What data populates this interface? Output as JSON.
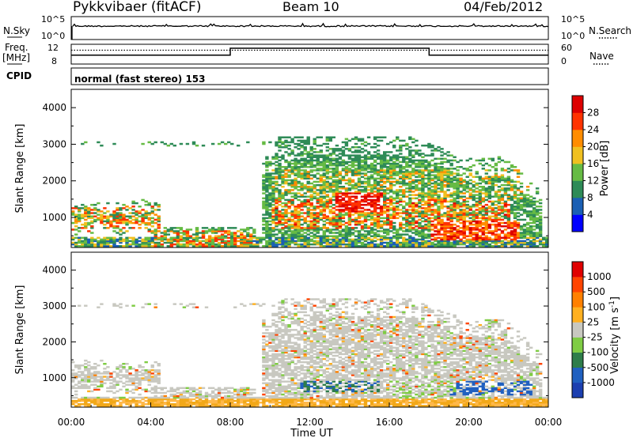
{
  "header": {
    "station": "Pykkvibaer (fitACF)",
    "beam": "Beam 10",
    "date": "04/Feb/2012"
  },
  "labels": {
    "nsky": "N.Sky",
    "nsearch": "N.Search",
    "freq_line1": "Freq.",
    "freq_line2": "[MHz]",
    "nave": "Nave",
    "cpid": "CPID",
    "cpid_value": "normal (fast stereo) 153"
  },
  "colors": {
    "power_scale": [
      "#0000ff",
      "#1a5fb4",
      "#2e8b57",
      "#66bb44",
      "#f0c020",
      "#ff8c00",
      "#ff3300",
      "#dd0000"
    ],
    "velocity_scale": [
      "#1c3fb0",
      "#2060c0",
      "#2e7d4a",
      "#7fcc44",
      "#c8c8c0",
      "#ffb020",
      "#ff8000",
      "#ff4400",
      "#e00000"
    ],
    "ground_scatter": "#c8c8c0"
  },
  "chart_data": [
    {
      "type": "line",
      "id": "noise",
      "ylabel": "N.Sky",
      "right_label": "N.Search",
      "y_ticks": [
        "10^5",
        "10^0"
      ],
      "right_ticks": [
        "10^5",
        "10^0"
      ]
    },
    {
      "type": "line",
      "id": "freq",
      "ylabel": "Freq. [MHz]",
      "right_label": "Nave",
      "y_ticks": [
        "12",
        "8"
      ],
      "right_ticks": [
        "60",
        "0"
      ],
      "freq_segments": [
        {
          "start": 0,
          "end": 8,
          "value": 9.8
        },
        {
          "start": 8,
          "end": 18,
          "value": 11.2
        },
        {
          "start": 18,
          "end": 24,
          "value": 9.8
        }
      ],
      "nave_level": 42
    },
    {
      "type": "heatmap",
      "id": "power",
      "ylabel": "Slant Range [km]",
      "ylim": [
        180,
        4500
      ],
      "y_ticks": [
        1000,
        2000,
        3000,
        4000
      ],
      "xlim": [
        0,
        24
      ],
      "colorbar_label": "Power [dB]",
      "colorbar_ticks": [
        "4",
        "8",
        "12",
        "16",
        "20",
        "24",
        "28"
      ]
    },
    {
      "type": "heatmap",
      "id": "velocity",
      "ylabel": "Slant Range [km]",
      "ylim": [
        180,
        4500
      ],
      "y_ticks": [
        1000,
        2000,
        3000,
        4000
      ],
      "xlim": [
        0,
        24
      ],
      "xlabel": "Time UT",
      "x_ticks": [
        "00:00",
        "04:00",
        "08:00",
        "12:00",
        "16:00",
        "20:00",
        "00:00"
      ],
      "colorbar_label": "Velocity [m s-1]",
      "colorbar_ticks": [
        "1000",
        "500",
        "100",
        "25",
        "-25",
        "-100",
        "-500",
        "-1000"
      ]
    }
  ]
}
